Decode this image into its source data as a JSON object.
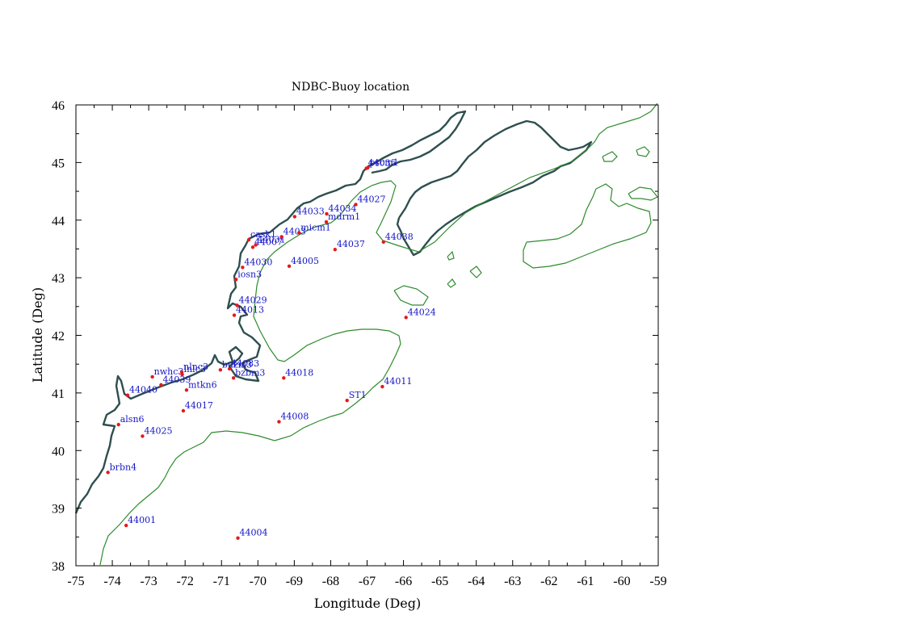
{
  "chart_data": {
    "type": "scatter",
    "title": "NDBC-Buoy location",
    "xlabel": "Longitude (Deg)",
    "ylabel": "Latitude (Deg)",
    "xlim": [
      -75,
      -59
    ],
    "ylim": [
      38,
      46
    ],
    "xticks": [
      -75,
      -74,
      -73,
      -72,
      -71,
      -70,
      -69,
      -68,
      -67,
      -66,
      -65,
      -64,
      -63,
      -62,
      -61,
      -60,
      -59
    ],
    "yticks": [
      38,
      39,
      40,
      41,
      42,
      43,
      44,
      45,
      46
    ],
    "grid": false,
    "colors": {
      "marker": "#e21b1b",
      "label": "#1515c8",
      "coast": "#2f4f4f",
      "contour": "#2e8b2e"
    },
    "stations": [
      {
        "name": "44001",
        "lon": -73.62,
        "lat": 38.7
      },
      {
        "name": "44004",
        "lon": -70.55,
        "lat": 38.48
      },
      {
        "name": "44008",
        "lon": -69.42,
        "lat": 40.5
      },
      {
        "name": "44011",
        "lon": -66.58,
        "lat": 41.11
      },
      {
        "name": "ST1",
        "lon": -67.55,
        "lat": 40.87
      },
      {
        "name": "44018",
        "lon": -69.29,
        "lat": 41.26
      },
      {
        "name": "44024",
        "lon": -65.93,
        "lat": 42.31
      },
      {
        "name": "44013",
        "lon": -70.65,
        "lat": 42.35
      },
      {
        "name": "44029",
        "lon": -70.57,
        "lat": 42.52
      },
      {
        "name": "iosn3",
        "lon": -70.6,
        "lat": 42.97
      },
      {
        "name": "44030",
        "lon": -70.42,
        "lat": 43.18
      },
      {
        "name": "44005",
        "lon": -69.14,
        "lat": 43.2
      },
      {
        "name": "44037",
        "lon": -67.88,
        "lat": 43.49
      },
      {
        "name": "44038",
        "lon": -66.55,
        "lat": 43.62
      },
      {
        "name": "44007",
        "lon": -70.14,
        "lat": 43.53
      },
      {
        "name": "44031",
        "lon": -70.06,
        "lat": 43.57
      },
      {
        "name": "cask1",
        "lon": -70.25,
        "lat": 43.66
      },
      {
        "name": "4403",
        "lon": -69.35,
        "lat": 43.71
      },
      {
        "name": "micm1",
        "lon": -68.87,
        "lat": 43.78
      },
      {
        "name": "mdrm1",
        "lon": -68.12,
        "lat": 43.97
      },
      {
        "name": "44034",
        "lon": -68.11,
        "lat": 44.11
      },
      {
        "name": "44033",
        "lon": -68.99,
        "lat": 44.06
      },
      {
        "name": "44027",
        "lon": -67.31,
        "lat": 44.27
      },
      {
        "name": "44035",
        "lon": -67.02,
        "lat": 44.9
      },
      {
        "name": "pscm1",
        "lon": -66.98,
        "lat": 44.91
      },
      {
        "name": "44017",
        "lon": -72.05,
        "lat": 40.69
      },
      {
        "name": "44025",
        "lon": -73.17,
        "lat": 40.25
      },
      {
        "name": "alsn6",
        "lon": -73.83,
        "lat": 40.45
      },
      {
        "name": "brbn4",
        "lon": -74.12,
        "lat": 39.62
      },
      {
        "name": "44040",
        "lon": -73.58,
        "lat": 40.96
      },
      {
        "name": "44039",
        "lon": -72.66,
        "lat": 41.14
      },
      {
        "name": "nwhc3",
        "lon": -72.9,
        "lat": 41.28
      },
      {
        "name": "lnlc3",
        "lon": -72.08,
        "lat": 41.32
      },
      {
        "name": "nlnc3",
        "lon": -72.09,
        "lat": 41.36
      },
      {
        "name": "mtkn6",
        "lon": -71.96,
        "lat": 41.05
      },
      {
        "name": "bzbm3",
        "lon": -70.67,
        "lat": 41.26
      },
      {
        "name": "44083",
        "lon": -70.78,
        "lat": 41.42
      },
      {
        "name": "buzm3",
        "lon": -71.03,
        "lat": 41.4
      }
    ]
  }
}
